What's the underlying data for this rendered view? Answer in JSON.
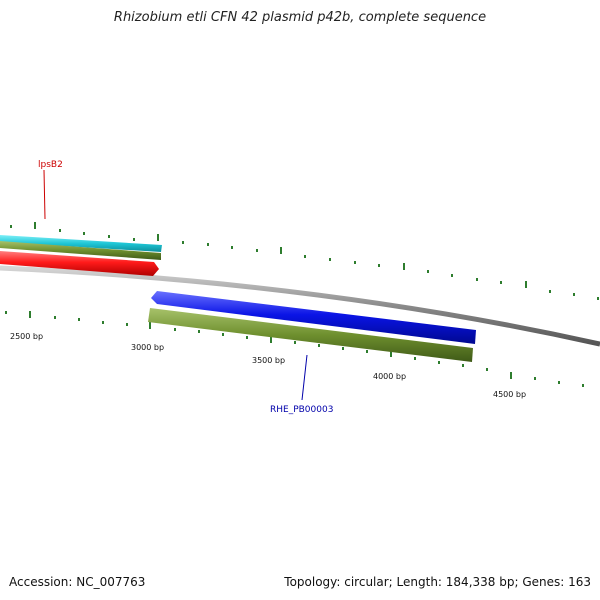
{
  "title": "Rhizobium etli CFN 42 plasmid p42b, complete sequence",
  "footer": {
    "accession": "Accession: NC_007763",
    "summary": "Topology: circular; Length: 184,338 bp; Genes: 163"
  },
  "colors": {
    "backbone": "#8a8a8a",
    "ticks": "#2e7d2e",
    "gene_cyan": "#22c8d8",
    "gene_green": "#6e8f2e",
    "gene_red": "#ff1a1a",
    "gene_blue": "#0a14e6",
    "label_red": "#cc0000",
    "label_blue": "#0000aa"
  },
  "ticks": {
    "labels": [
      "2500 bp",
      "3000 bp",
      "3500 bp",
      "4000 bp",
      "4500 bp"
    ]
  },
  "genes": {
    "labels": {
      "lpsB2": "lpsB2",
      "rhe_pb00003": "RHE_PB00003"
    }
  }
}
